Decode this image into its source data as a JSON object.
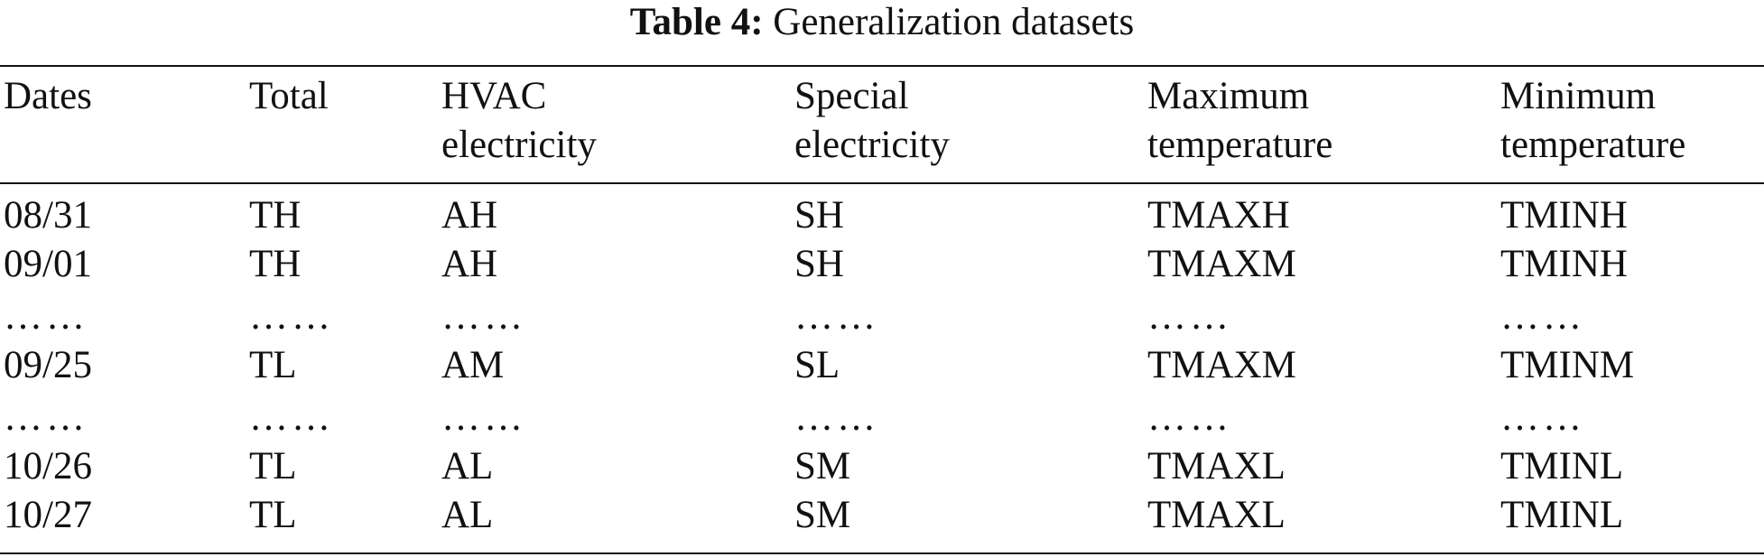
{
  "caption": {
    "label": "Table 4:",
    "text": "Generalization datasets"
  },
  "table": {
    "headers": [
      [
        "Dates",
        ""
      ],
      [
        "Total",
        ""
      ],
      [
        "HVAC",
        "electricity"
      ],
      [
        "Special",
        "electricity"
      ],
      [
        "Maximum",
        "temperature"
      ],
      [
        "Minimum",
        "temperature"
      ]
    ],
    "rows": [
      [
        "08/31",
        "TH",
        "AH",
        "SH",
        "TMAXH",
        "TMINH"
      ],
      [
        "09/01",
        "TH",
        "AH",
        "SH",
        "TMAXM",
        "TMINH"
      ],
      [
        "……",
        "……",
        "……",
        "……",
        "……",
        "……"
      ],
      [
        "09/25",
        "TL",
        "AM",
        "SL",
        "TMAXM",
        "TMINM"
      ],
      [
        "……",
        "……",
        "……",
        "……",
        "……",
        "……"
      ],
      [
        "10/26",
        "TL",
        "AL",
        "SM",
        "TMAXL",
        "TMINL"
      ],
      [
        "10/27",
        "TL",
        "AL",
        "SM",
        "TMAXL",
        "TMINL"
      ]
    ]
  }
}
